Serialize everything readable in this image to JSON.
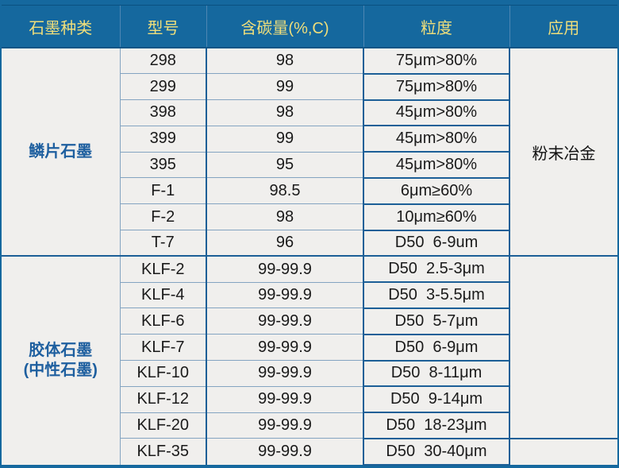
{
  "table": {
    "headers": [
      "石墨种类",
      "型号",
      "含碳量(%,C)",
      "粒度",
      "应用"
    ],
    "groups": [
      {
        "category_line1": "鳞片石墨",
        "application": "粉末冶金",
        "rows": [
          {
            "model": "298",
            "carbon": "98",
            "size": "75μm>80%"
          },
          {
            "model": "299",
            "carbon": "99",
            "size": "75μm>80%"
          },
          {
            "model": "398",
            "carbon": "98",
            "size": "45μm>80%"
          },
          {
            "model": "399",
            "carbon": "99",
            "size": "45μm>80%"
          },
          {
            "model": "395",
            "carbon": "95",
            "size": "45μm>80%"
          },
          {
            "model": "F-1",
            "carbon": "98.5",
            "size": "6μm≥60%"
          },
          {
            "model": "F-2",
            "carbon": "98",
            "size": "10μm≥60%"
          },
          {
            "model": "T-7",
            "carbon": "96",
            "size": "D50  6-9um"
          }
        ]
      },
      {
        "category_line1": "胶体石墨",
        "category_line2": "(中性石墨)",
        "application": "",
        "rows": [
          {
            "model": "KLF-2",
            "carbon": "99-99.9",
            "size": "D50  2.5-3μm"
          },
          {
            "model": "KLF-4",
            "carbon": "99-99.9",
            "size": "D50  3-5.5μm"
          },
          {
            "model": "KLF-6",
            "carbon": "99-99.9",
            "size": "D50  5-7μm"
          },
          {
            "model": "KLF-7",
            "carbon": "99-99.9",
            "size": "D50  6-9μm"
          },
          {
            "model": "KLF-10",
            "carbon": "99-99.9",
            "size": "D50  8-11μm"
          },
          {
            "model": "KLF-12",
            "carbon": "99-99.9",
            "size": "D50  9-14μm"
          },
          {
            "model": "KLF-20",
            "carbon": "99-99.9",
            "size": "D50  18-23μm"
          },
          {
            "model": "KLF-35",
            "carbon": "99-99.9",
            "size": "D50  30-40μm",
            "application": ""
          }
        ]
      }
    ],
    "colors": {
      "header_bg": "#15689E",
      "header_text": "#EFDE7B",
      "body_bg": "#F0EFED",
      "border_light": "#84A4C1",
      "border_dark": "#1C5F97",
      "frame_line": "#0A5080",
      "category_text": "#1E5F9F",
      "cell_text": "#1A1A1A"
    }
  }
}
